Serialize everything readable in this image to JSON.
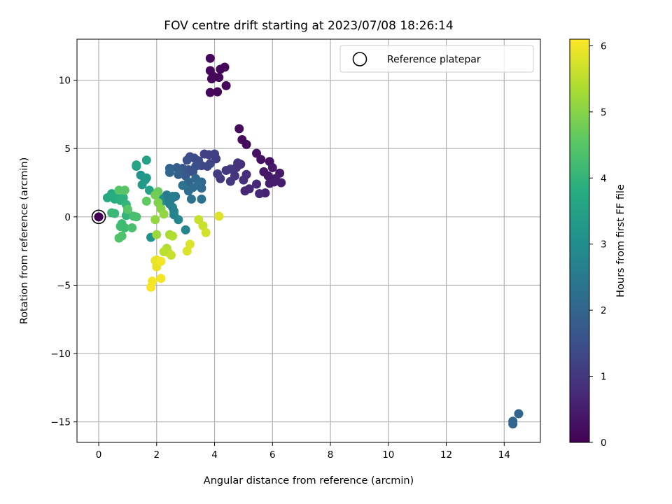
{
  "chart_data": {
    "type": "scatter",
    "title": "FOV centre drift starting at 2023/07/08 18:26:14",
    "xlabel": "Angular distance from reference (arcmin)",
    "ylabel": "Rotation from reference (arcmin)",
    "xlim": [
      -0.75,
      15.25
    ],
    "ylim": [
      -16.5,
      13
    ],
    "xticks": [
      0,
      2,
      4,
      6,
      8,
      10,
      12,
      14
    ],
    "yticks": [
      -15,
      -10,
      -5,
      0,
      5,
      10
    ],
    "grid": true,
    "legend": {
      "placement": "top-right",
      "entries": [
        "Reference platepar"
      ]
    },
    "colorbar": {
      "label": "Hours from first FF file",
      "ticks": [
        0,
        1,
        2,
        3,
        4,
        5,
        6
      ],
      "range": [
        0,
        6.1
      ],
      "colormap": "viridis"
    },
    "reference_point": {
      "x": 0,
      "y": 0
    },
    "series": [
      {
        "points": [
          [
            3.85,
            11.6,
            0.1
          ],
          [
            3.85,
            10.7,
            0.1
          ],
          [
            3.95,
            10.3,
            0.1
          ],
          [
            4.2,
            10.8,
            0.1
          ],
          [
            4.35,
            10.95,
            0.1
          ],
          [
            4.15,
            10.2,
            0.1
          ],
          [
            3.9,
            10.1,
            0.1
          ],
          [
            4.4,
            9.6,
            0.1
          ],
          [
            3.85,
            9.1,
            0.1
          ],
          [
            4.1,
            9.15,
            0.1
          ],
          [
            4.85,
            6.45,
            0.2
          ],
          [
            4.95,
            5.65,
            0.2
          ],
          [
            5.1,
            5.3,
            0.2
          ],
          [
            5.45,
            4.65,
            0.3
          ],
          [
            5.6,
            4.2,
            0.3
          ],
          [
            5.9,
            4.05,
            0.3
          ],
          [
            6.0,
            3.6,
            0.4
          ],
          [
            6.25,
            3.2,
            0.4
          ],
          [
            5.7,
            3.3,
            0.4
          ],
          [
            5.85,
            3.0,
            0.4
          ],
          [
            6.1,
            2.8,
            0.5
          ],
          [
            6.05,
            2.55,
            0.5
          ],
          [
            6.3,
            2.5,
            0.5
          ],
          [
            5.9,
            2.45,
            0.5
          ],
          [
            5.75,
            1.75,
            0.6
          ],
          [
            5.55,
            1.7,
            0.7
          ],
          [
            5.45,
            2.4,
            0.7
          ],
          [
            5.2,
            2.05,
            0.7
          ],
          [
            5.05,
            1.9,
            0.7
          ],
          [
            5.0,
            2.7,
            0.8
          ],
          [
            5.1,
            3.1,
            0.8
          ],
          [
            4.9,
            3.85,
            0.8
          ],
          [
            4.75,
            3.6,
            0.9
          ],
          [
            4.8,
            3.95,
            0.9
          ],
          [
            4.7,
            3.0,
            0.9
          ],
          [
            4.55,
            2.6,
            1.0
          ],
          [
            4.4,
            3.4,
            1.0
          ],
          [
            4.55,
            3.5,
            1.0
          ],
          [
            4.2,
            2.8,
            1.0
          ],
          [
            4.1,
            3.15,
            1.1
          ],
          [
            4.05,
            4.25,
            1.1
          ],
          [
            4.0,
            4.6,
            1.2
          ],
          [
            3.8,
            4.55,
            1.2
          ],
          [
            3.65,
            4.6,
            1.2
          ],
          [
            3.55,
            3.75,
            1.3
          ],
          [
            3.85,
            3.9,
            1.3
          ],
          [
            3.75,
            3.7,
            1.3
          ],
          [
            3.45,
            4.1,
            1.4
          ],
          [
            3.3,
            4.3,
            1.4
          ],
          [
            3.15,
            4.4,
            1.4
          ],
          [
            3.05,
            4.15,
            1.5
          ],
          [
            3.35,
            3.7,
            1.5
          ],
          [
            3.1,
            3.45,
            1.6
          ],
          [
            3.25,
            3.3,
            1.6
          ],
          [
            3.0,
            3.0,
            1.7
          ],
          [
            2.9,
            3.55,
            1.7
          ],
          [
            2.8,
            3.25,
            1.8
          ],
          [
            2.7,
            3.6,
            1.8
          ],
          [
            2.75,
            3.1,
            1.9
          ],
          [
            2.45,
            3.55,
            2.0
          ],
          [
            2.45,
            3.25,
            2.0
          ],
          [
            3.1,
            2.55,
            2.0
          ],
          [
            3.35,
            2.8,
            2.1
          ],
          [
            3.55,
            2.55,
            2.1
          ],
          [
            3.55,
            2.1,
            2.1
          ],
          [
            3.45,
            2.4,
            2.2
          ],
          [
            3.1,
            1.9,
            2.2
          ],
          [
            3.25,
            2.15,
            2.2
          ],
          [
            2.9,
            2.3,
            2.3
          ],
          [
            3.2,
            1.3,
            2.3
          ],
          [
            3.55,
            1.3,
            2.3
          ],
          [
            2.65,
            1.5,
            2.4
          ],
          [
            2.5,
            1.3,
            2.4
          ],
          [
            2.35,
            1.6,
            2.5
          ],
          [
            2.25,
            1.35,
            2.5
          ],
          [
            2.0,
            1.6,
            2.6
          ],
          [
            2.55,
            1.5,
            2.6
          ],
          [
            2.45,
            0.95,
            2.6
          ],
          [
            2.55,
            0.7,
            2.7
          ],
          [
            2.6,
            0.4,
            2.7
          ],
          [
            2.6,
            0.15,
            2.7
          ],
          [
            2.75,
            -0.2,
            2.8
          ],
          [
            3.0,
            -0.95,
            2.8
          ],
          [
            2.15,
            1.05,
            2.9
          ],
          [
            2.1,
            1.4,
            3.0
          ],
          [
            1.8,
            -1.5,
            3.1
          ],
          [
            1.6,
            2.7,
            3.2
          ],
          [
            1.45,
            3.05,
            3.2
          ],
          [
            1.65,
            2.85,
            3.3
          ],
          [
            1.5,
            2.35,
            3.3
          ],
          [
            1.3,
            3.7,
            3.4
          ],
          [
            1.65,
            4.15,
            3.5
          ],
          [
            1.75,
            1.95,
            3.5
          ],
          [
            1.3,
            3.8,
            3.6
          ],
          [
            0.75,
            1.5,
            3.6
          ],
          [
            0.65,
            1.6,
            3.6
          ],
          [
            0.45,
            1.7,
            3.7
          ],
          [
            0.3,
            1.4,
            3.7
          ],
          [
            0.5,
            1.5,
            3.8
          ],
          [
            0.55,
            1.3,
            3.8
          ],
          [
            0.75,
            1.2,
            3.9
          ],
          [
            0.85,
            1.4,
            3.9
          ],
          [
            0.95,
            0.9,
            4.0
          ],
          [
            1.0,
            0.35,
            4.0
          ],
          [
            0.95,
            0.1,
            4.0
          ],
          [
            0.55,
            0.25,
            4.1
          ],
          [
            0.45,
            0.3,
            4.1
          ],
          [
            0.8,
            -0.5,
            4.2
          ],
          [
            0.9,
            -0.8,
            4.2
          ],
          [
            0.75,
            -0.7,
            4.2
          ],
          [
            1.15,
            -0.8,
            4.3
          ],
          [
            1.3,
            0.0,
            4.3
          ],
          [
            1.2,
            0.05,
            4.3
          ],
          [
            0.7,
            -1.55,
            4.4
          ],
          [
            0.8,
            -1.4,
            4.4
          ],
          [
            1.0,
            0.55,
            4.5
          ],
          [
            0.7,
            1.95,
            4.5
          ],
          [
            0.9,
            1.95,
            4.5
          ],
          [
            1.65,
            1.15,
            4.6
          ],
          [
            2.05,
            1.85,
            4.7
          ],
          [
            1.95,
            1.6,
            4.8
          ],
          [
            2.05,
            1.05,
            4.9
          ],
          [
            2.15,
            0.6,
            5.0
          ],
          [
            2.25,
            0.2,
            5.1
          ],
          [
            1.95,
            -0.2,
            5.1
          ],
          [
            2.0,
            -1.3,
            5.2
          ],
          [
            2.45,
            -1.3,
            5.3
          ],
          [
            2.55,
            -1.4,
            5.4
          ],
          [
            2.35,
            -2.3,
            5.4
          ],
          [
            2.4,
            -2.6,
            5.5
          ],
          [
            2.25,
            -2.55,
            5.5
          ],
          [
            2.5,
            -2.8,
            5.6
          ],
          [
            3.45,
            -0.2,
            5.6
          ],
          [
            3.6,
            -0.65,
            5.6
          ],
          [
            3.7,
            -1.15,
            5.7
          ],
          [
            4.15,
            0.05,
            5.8
          ],
          [
            3.15,
            -2.0,
            5.8
          ],
          [
            3.05,
            -2.5,
            5.8
          ],
          [
            2.0,
            -3.15,
            5.9
          ],
          [
            1.95,
            -3.2,
            5.9
          ],
          [
            2.0,
            -3.65,
            5.9
          ],
          [
            2.15,
            -3.25,
            6.0
          ],
          [
            1.85,
            -4.7,
            6.0
          ],
          [
            2.15,
            -4.5,
            6.0
          ],
          [
            1.8,
            -5.15,
            6.05
          ],
          [
            14.3,
            -14.95,
            2.0
          ],
          [
            14.5,
            -14.4,
            2.0
          ],
          [
            14.3,
            -15.15,
            2.0
          ]
        ]
      }
    ]
  }
}
